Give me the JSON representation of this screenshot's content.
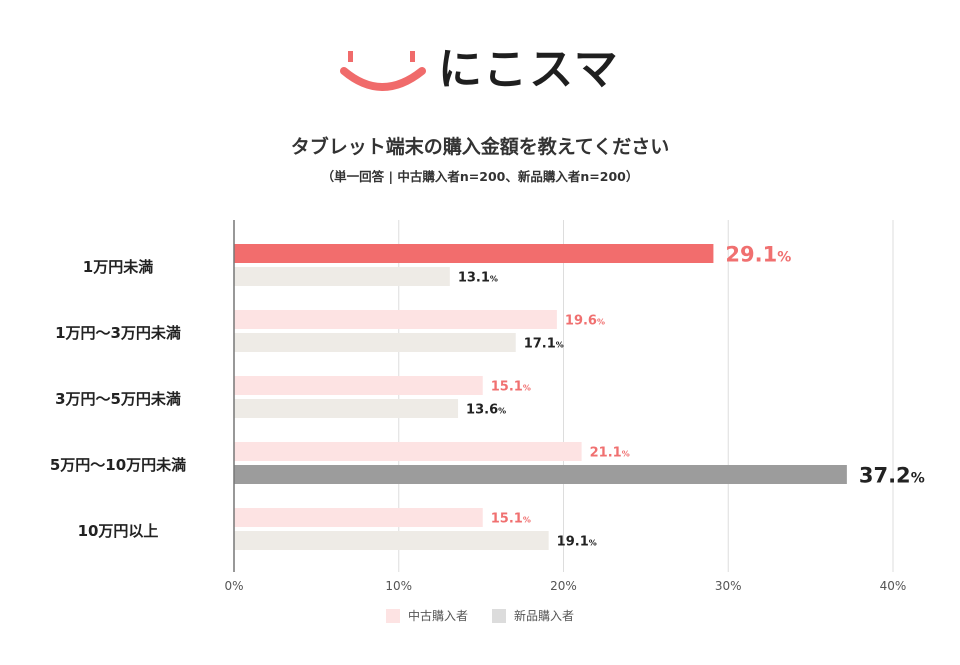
{
  "logo": {
    "text": "にこスマ",
    "accent": "#f06b6b"
  },
  "chart_data": {
    "type": "bar",
    "orientation": "horizontal",
    "title": "タブレット端末の購入金額を教えてください",
    "subtitle": "（単一回答 | 中古購入者n=200、新品購入者n=200）",
    "categories": [
      "1万円未満",
      "1万円〜3万円未満",
      "3万円〜5万円未満",
      "5万円〜10万円未満",
      "10万円以上"
    ],
    "series": [
      {
        "name": "中古購入者",
        "values": [
          29.1,
          19.6,
          15.1,
          21.1,
          15.1
        ],
        "color": "#fde3e3",
        "highlight_color": "#f26d6d",
        "label_color": "#f07070"
      },
      {
        "name": "新品購入者",
        "values": [
          13.1,
          17.1,
          13.6,
          37.2,
          19.1
        ],
        "color": "#eeebe6",
        "highlight_color": "#9c9c9c",
        "label_color": "#222222"
      }
    ],
    "highlight": [
      {
        "series": 0,
        "category": 0
      },
      {
        "series": 1,
        "category": 3
      }
    ],
    "value_suffix": "%",
    "xlim": [
      0,
      40
    ],
    "xticks": [
      "0%",
      "10%",
      "20%",
      "30%",
      "40%"
    ],
    "xtick_values": [
      0,
      10,
      20,
      30,
      40
    ],
    "grid": true,
    "legend_position": "bottom"
  }
}
